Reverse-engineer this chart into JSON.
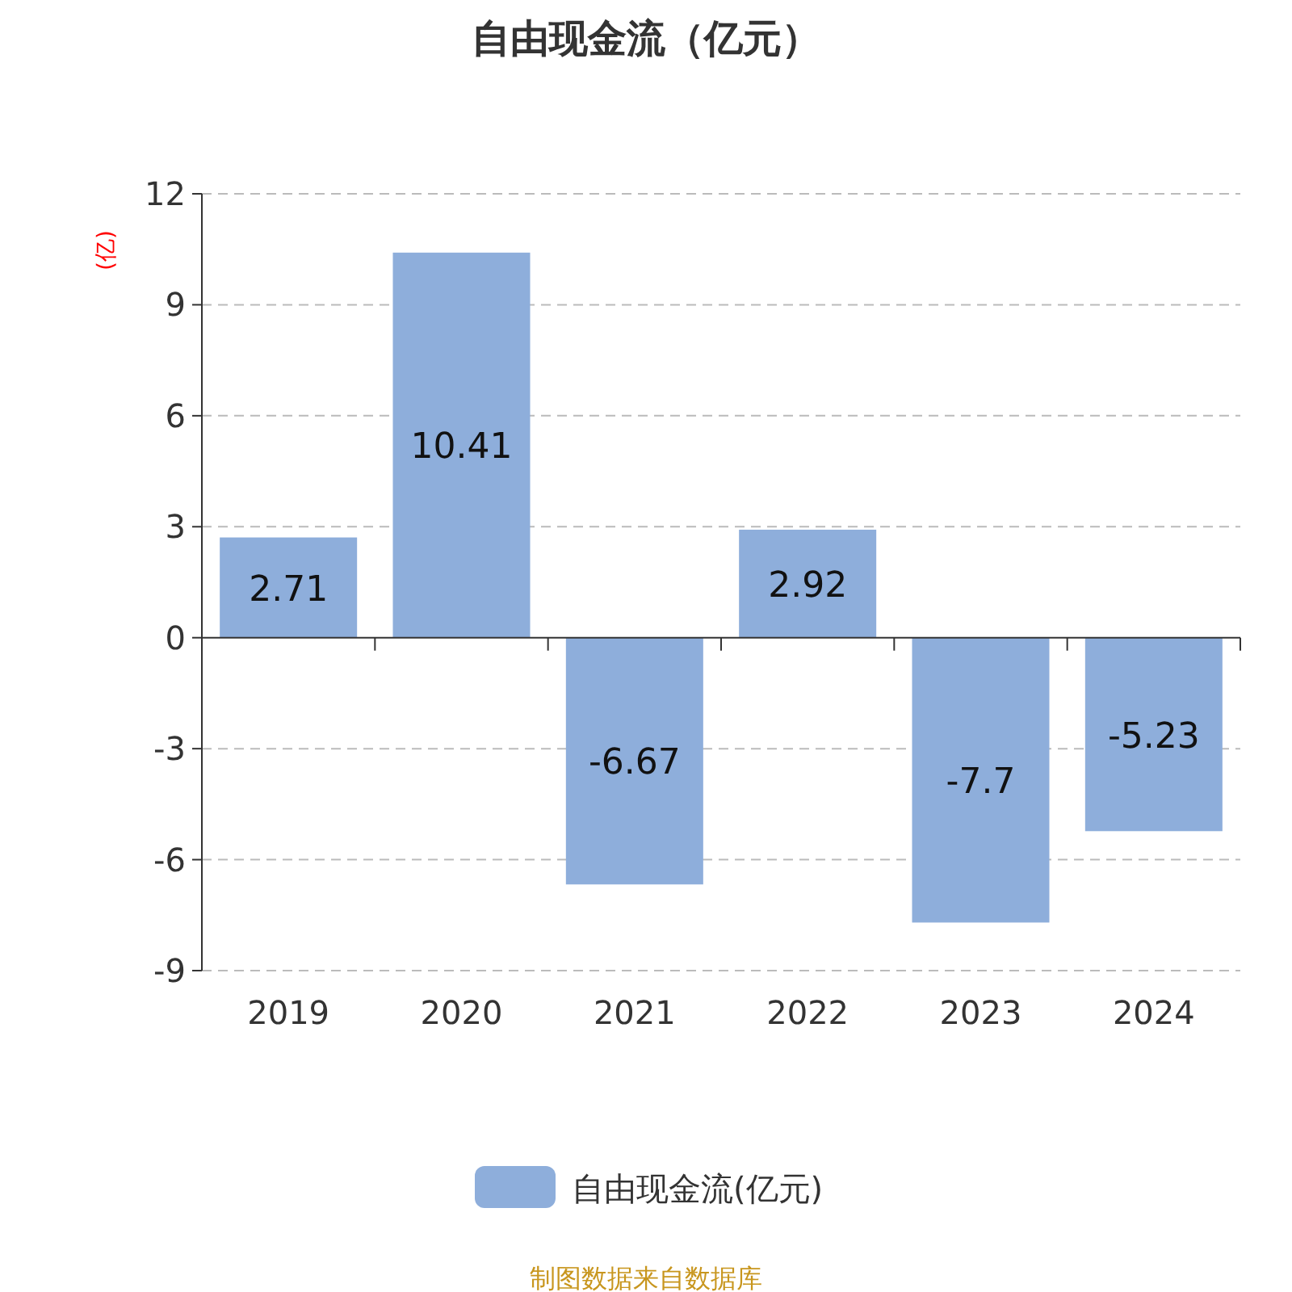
{
  "chart_data": {
    "type": "bar",
    "title": "自由现金流（亿元）",
    "ylabel": "(亿)",
    "categories": [
      "2019",
      "2020",
      "2021",
      "2022",
      "2023",
      "2024"
    ],
    "series": [
      {
        "name": "自由现金流(亿元)",
        "color": "#8eaedb",
        "values": [
          2.71,
          10.41,
          -6.67,
          2.92,
          -7.7,
          -5.23
        ]
      }
    ],
    "ylim": [
      -9,
      12
    ],
    "yticks": [
      -9,
      -6,
      -3,
      0,
      3,
      6,
      9,
      12
    ],
    "grid": "y",
    "legend": "bottom",
    "data_labels": true,
    "annotations": [
      "制图数据来自数据库"
    ]
  }
}
